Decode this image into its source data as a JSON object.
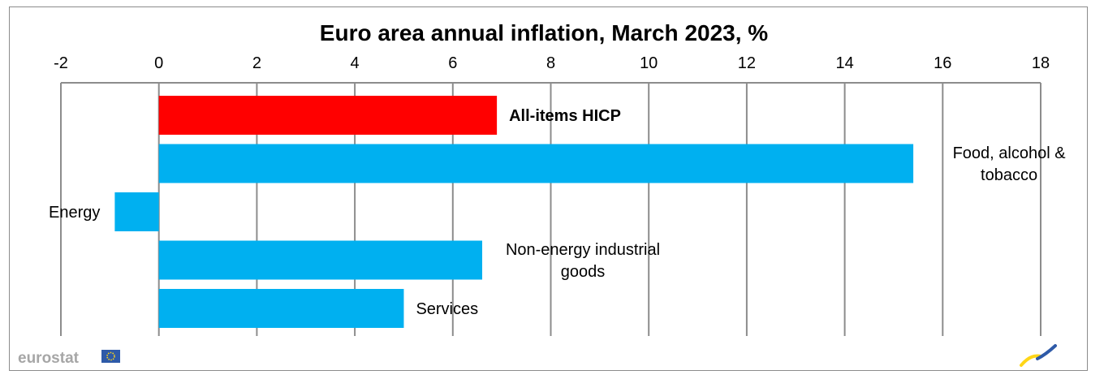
{
  "chart_data": {
    "type": "bar",
    "orientation": "horizontal",
    "title": "Euro area annual inflation, March 2023, %",
    "xlim": [
      -2,
      18
    ],
    "xticks": [
      -2,
      0,
      2,
      4,
      6,
      8,
      10,
      12,
      14,
      16,
      18
    ],
    "xtick_position": "top",
    "grid": "vertical",
    "categories": [
      {
        "label": "All-items HICP",
        "label_lines": [
          "All-items HICP"
        ],
        "value": 6.9,
        "color": "#ff0000",
        "bold": true
      },
      {
        "label": "Food, alcohol & tobacco",
        "label_lines": [
          "Food, alcohol &",
          "tobacco"
        ],
        "value": 15.4,
        "color": "#00b0f0",
        "bold": false
      },
      {
        "label": "Energy",
        "label_lines": [
          "Energy"
        ],
        "value": -0.9,
        "color": "#00b0f0",
        "bold": false
      },
      {
        "label": "Non-energy industrial goods",
        "label_lines": [
          "Non-energy industrial",
          "goods"
        ],
        "value": 6.6,
        "color": "#00b0f0",
        "bold": false
      },
      {
        "label": "Services",
        "label_lines": [
          "Services"
        ],
        "value": 5.0,
        "color": "#00b0f0",
        "bold": false
      }
    ]
  },
  "branding": {
    "logo_text": "eurostat",
    "flag_icon": "eu-flag-icon",
    "corner_icon": "eurostat-swoosh-icon",
    "flag_color": "#2e5aa8",
    "flag_star_color": "#ffd617",
    "swoosh_colors": [
      "#ffd617",
      "#2e5aa8"
    ]
  }
}
